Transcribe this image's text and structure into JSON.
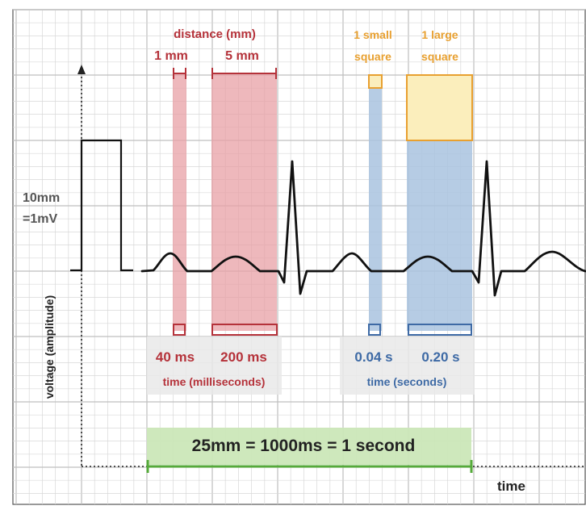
{
  "labels": {
    "distance_title": "distance (mm)",
    "one_mm": "1 mm",
    "five_mm": "5 mm",
    "one_small_line1": "1 small",
    "one_small_line2": "square",
    "one_large_line1": "1 large",
    "one_large_line2": "square",
    "calibration_line1": "10mm",
    "calibration_line2": "=1mV",
    "y_axis": "voltage (amplitude)",
    "x_axis": "time",
    "ms40": "40 ms",
    "ms200": "200 ms",
    "time_ms": "time (milliseconds)",
    "s004": "0.04 s",
    "s020": "0.20 s",
    "time_s": "time (seconds)",
    "banner": "25mm = 1000ms = 1 second"
  },
  "colors": {
    "red": "#b5323a",
    "red_fill": "#e8a0a5",
    "orange": "#e8a030",
    "orange_fill": "#fbeebc",
    "blue": "#3e6aa5",
    "blue_fill": "#a9c3df",
    "green": "#55aa3a",
    "green_fill": "#cbe7b8",
    "grid": "#d8d8d8",
    "grid_major": "#bfbfbf",
    "trace": "#111111"
  }
}
